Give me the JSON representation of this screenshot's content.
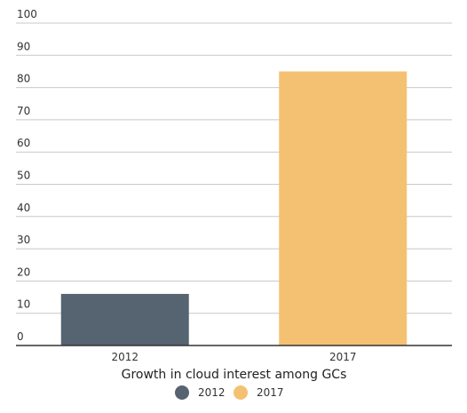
{
  "chart_data": {
    "type": "bar",
    "categories": [
      "2012",
      "2017"
    ],
    "values": [
      16,
      85
    ],
    "colors": [
      "#566370",
      "#F4C173"
    ],
    "xlabel": "Growth in cloud interest among GCs",
    "ylabel": "",
    "ylim": [
      0,
      100
    ],
    "yticks": [
      0,
      10,
      20,
      30,
      40,
      50,
      60,
      70,
      80,
      90,
      100
    ],
    "grid": true,
    "legend": {
      "placement": "bottom-center",
      "entries": [
        {
          "label": "2012",
          "color": "#566370"
        },
        {
          "label": "2017",
          "color": "#F4C173"
        }
      ]
    }
  }
}
